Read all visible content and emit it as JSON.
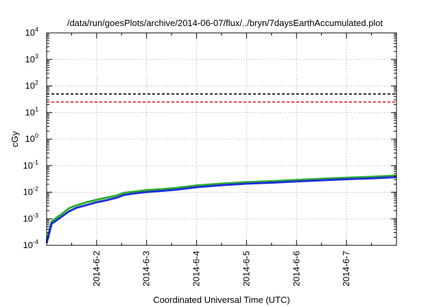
{
  "chart_data": {
    "type": "line",
    "title": "/data/run/goesPlots/archive/2014-06-07/flux/../bryn/7daysEarthAccumulated.plot",
    "xlabel": "Coordinated Universal Time (UTC)",
    "ylabel": "cGy",
    "yscale": "log",
    "ylim": [
      0.0001,
      10000
    ],
    "xlim": [
      0,
      7
    ],
    "grid": true,
    "x_ticks": [
      {
        "x": 1,
        "label": "2014-6-2"
      },
      {
        "x": 2,
        "label": "2014-6-3"
      },
      {
        "x": 3,
        "label": "2014-6-4"
      },
      {
        "x": 4,
        "label": "2014-6-5"
      },
      {
        "x": 5,
        "label": "2014-6-6"
      },
      {
        "x": 6,
        "label": "2014-6-7"
      }
    ],
    "y_ticks": [
      {
        "value": 0.0001,
        "base": "10",
        "exp": "-4"
      },
      {
        "value": 0.001,
        "base": "10",
        "exp": "-3"
      },
      {
        "value": 0.01,
        "base": "10",
        "exp": "-2"
      },
      {
        "value": 0.1,
        "base": "10",
        "exp": "-1"
      },
      {
        "value": 1,
        "base": "10",
        "exp": "0"
      },
      {
        "value": 10,
        "base": "10",
        "exp": "1"
      },
      {
        "value": 100,
        "base": "10",
        "exp": "2"
      },
      {
        "value": 1000,
        "base": "10",
        "exp": "3"
      },
      {
        "value": 10000,
        "base": "10",
        "exp": "4"
      }
    ],
    "reference_lines": [
      {
        "value": 50,
        "color": "#000000",
        "style": "dashed"
      },
      {
        "value": 25,
        "color": "#e8191b",
        "style": "dashed"
      }
    ],
    "series": [
      {
        "color": "#2bb02b",
        "x": [
          0,
          0.1,
          0.3,
          0.45,
          0.6,
          0.8,
          1.0,
          1.2,
          1.4,
          1.55,
          1.75,
          2.0,
          2.3,
          2.6,
          3.0,
          3.5,
          4.0,
          4.5,
          5.0,
          5.5,
          6.0,
          6.5,
          7.0
        ],
        "values": [
          0.00015,
          0.0008,
          0.0015,
          0.0025,
          0.0032,
          0.0042,
          0.0052,
          0.0062,
          0.0075,
          0.0095,
          0.0105,
          0.012,
          0.013,
          0.0145,
          0.018,
          0.021,
          0.024,
          0.026,
          0.029,
          0.032,
          0.035,
          0.038,
          0.042
        ]
      },
      {
        "color": "#1f2fd8",
        "x": [
          0,
          0.1,
          0.3,
          0.45,
          0.6,
          0.8,
          1.0,
          1.2,
          1.4,
          1.55,
          1.75,
          2.0,
          2.3,
          2.6,
          3.0,
          3.5,
          4.0,
          4.5,
          5.0,
          5.5,
          6.0,
          6.5,
          7.0
        ],
        "values": [
          0.00012,
          0.00065,
          0.0012,
          0.0019,
          0.0026,
          0.0033,
          0.0042,
          0.005,
          0.0062,
          0.0079,
          0.009,
          0.0102,
          0.0112,
          0.0125,
          0.0155,
          0.0183,
          0.021,
          0.0228,
          0.0255,
          0.0282,
          0.031,
          0.0335,
          0.037
        ]
      }
    ]
  }
}
